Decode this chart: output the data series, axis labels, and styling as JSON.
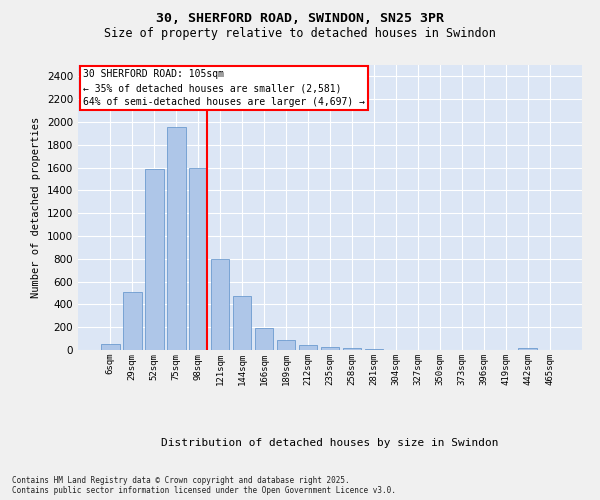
{
  "title_line1": "30, SHERFORD ROAD, SWINDON, SN25 3PR",
  "title_line2": "Size of property relative to detached houses in Swindon",
  "xlabel": "Distribution of detached houses by size in Swindon",
  "ylabel": "Number of detached properties",
  "footnote": "Contains HM Land Registry data © Crown copyright and database right 2025.\nContains public sector information licensed under the Open Government Licence v3.0.",
  "annotation_title": "30 SHERFORD ROAD: 105sqm",
  "annotation_line2": "← 35% of detached houses are smaller (2,581)",
  "annotation_line3": "64% of semi-detached houses are larger (4,697) →",
  "bar_color": "#aec6e8",
  "bar_edge_color": "#5b8fc9",
  "vline_color": "red",
  "background_color": "#dce6f5",
  "grid_color": "#ffffff",
  "fig_background": "#f0f0f0",
  "categories": [
    "6sqm",
    "29sqm",
    "52sqm",
    "75sqm",
    "98sqm",
    "121sqm",
    "144sqm",
    "166sqm",
    "189sqm",
    "212sqm",
    "235sqm",
    "258sqm",
    "281sqm",
    "304sqm",
    "327sqm",
    "350sqm",
    "373sqm",
    "396sqm",
    "419sqm",
    "442sqm",
    "465sqm"
  ],
  "values": [
    55,
    510,
    1590,
    1960,
    1600,
    800,
    475,
    195,
    90,
    40,
    30,
    20,
    10,
    0,
    0,
    0,
    0,
    0,
    0,
    20,
    0
  ],
  "ylim": [
    0,
    2500
  ],
  "yticks": [
    0,
    200,
    400,
    600,
    800,
    1000,
    1200,
    1400,
    1600,
    1800,
    2000,
    2200,
    2400
  ],
  "vline_x_index": 4,
  "figsize": [
    6.0,
    5.0
  ],
  "dpi": 100
}
